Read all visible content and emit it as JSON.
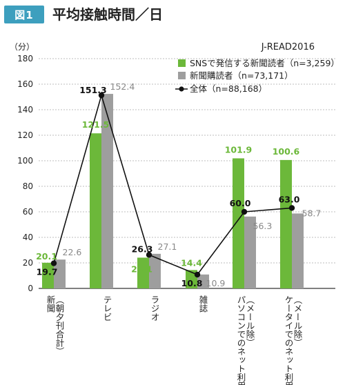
{
  "header": {
    "figure_label": "図1",
    "title": "平均接触時間／日"
  },
  "source": "J-READ2016",
  "unit_label": "（分）",
  "colors": {
    "sns": "#6cb83a",
    "reader": "#9e9e9e",
    "all": "#111111",
    "grid": "#bdbdbd",
    "badge": "#3d9fbe"
  },
  "chart_data": {
    "type": "bar",
    "ylim": [
      0,
      180
    ],
    "yticks": [
      0,
      20,
      40,
      60,
      80,
      100,
      120,
      140,
      160,
      180
    ],
    "grid": true,
    "legend_position": "top-right",
    "categories": [
      [
        "新聞",
        "（朝夕刊合計）"
      ],
      [
        "テレビ"
      ],
      [
        "ラジオ"
      ],
      [
        "雑誌"
      ],
      [
        "パソコンでのネット利用",
        "（メール除）"
      ],
      [
        "ケータイでのネット利用",
        "（メール除）"
      ]
    ],
    "series": [
      {
        "name": "SNSで発信する新聞読者（n=3,259）",
        "kind": "bar",
        "values": [
          20.1,
          121.5,
          24.1,
          14.4,
          101.9,
          100.6
        ]
      },
      {
        "name": "新聞購読者（n=73,171）",
        "kind": "bar",
        "values": [
          22.6,
          152.4,
          27.1,
          10.9,
          56.3,
          58.7
        ]
      },
      {
        "name": "全体（n=88,168）",
        "kind": "line",
        "values": [
          19.7,
          151.3,
          26.3,
          10.8,
          60.0,
          63.0
        ]
      }
    ]
  }
}
